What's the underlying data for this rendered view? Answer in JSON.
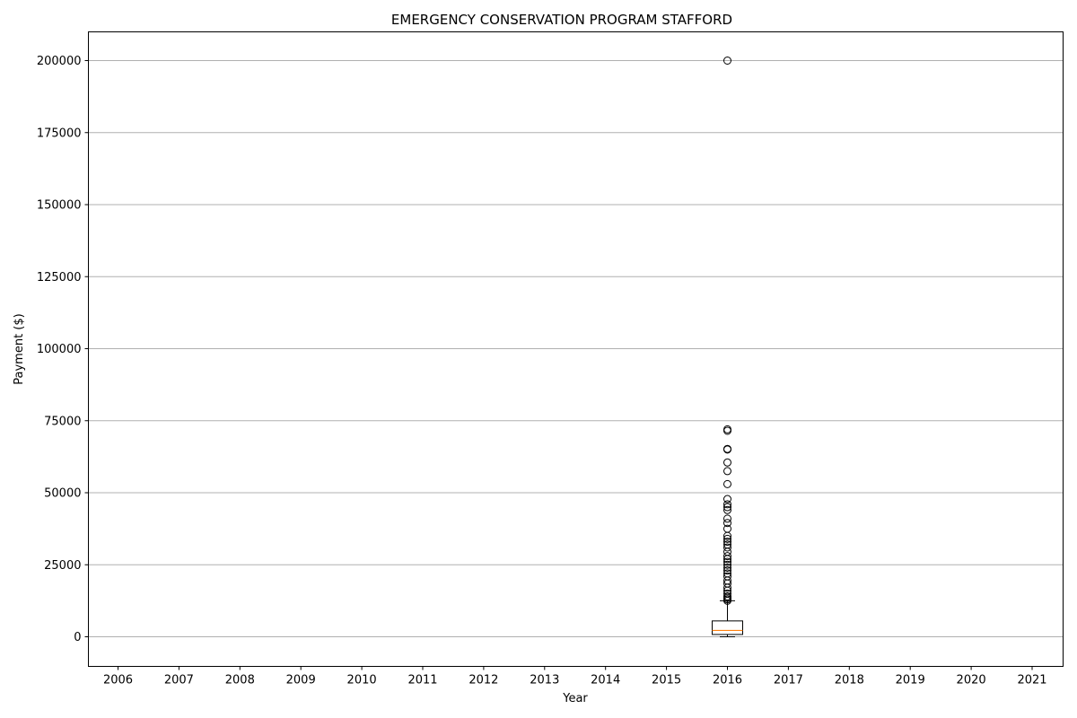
{
  "chart_data": {
    "type": "boxplot",
    "title": "EMERGENCY CONSERVATION PROGRAM STAFFORD",
    "xlabel": "Year",
    "ylabel": "Payment ($)",
    "categories": [
      "2006",
      "2007",
      "2008",
      "2009",
      "2010",
      "2011",
      "2012",
      "2013",
      "2014",
      "2015",
      "2016",
      "2017",
      "2018",
      "2019",
      "2020",
      "2021"
    ],
    "ylim": [
      -10000,
      210000
    ],
    "yticks": [
      0,
      25000,
      50000,
      75000,
      100000,
      125000,
      150000,
      175000,
      200000
    ],
    "ygrid": true,
    "boxes": [
      {
        "category": "2016",
        "whisker_low": 0,
        "q1": 800,
        "median": 2200,
        "q3": 5500,
        "whisker_high": 12500,
        "outliers": [
          200000,
          72000,
          71500,
          65200,
          65000,
          60500,
          57500,
          53000,
          47800,
          46000,
          45000,
          44000,
          41000,
          39500,
          37500,
          35000,
          34000,
          33000,
          32000,
          31000,
          29500,
          28000,
          27000,
          26000,
          25000,
          24000,
          23000,
          22000,
          21000,
          19500,
          18500,
          17000,
          16000,
          15000,
          14000,
          13500,
          13000,
          12500
        ]
      }
    ],
    "colors": {
      "box": "#000000",
      "median": "#ff7f0e",
      "grid": "#b0b0b0"
    }
  }
}
